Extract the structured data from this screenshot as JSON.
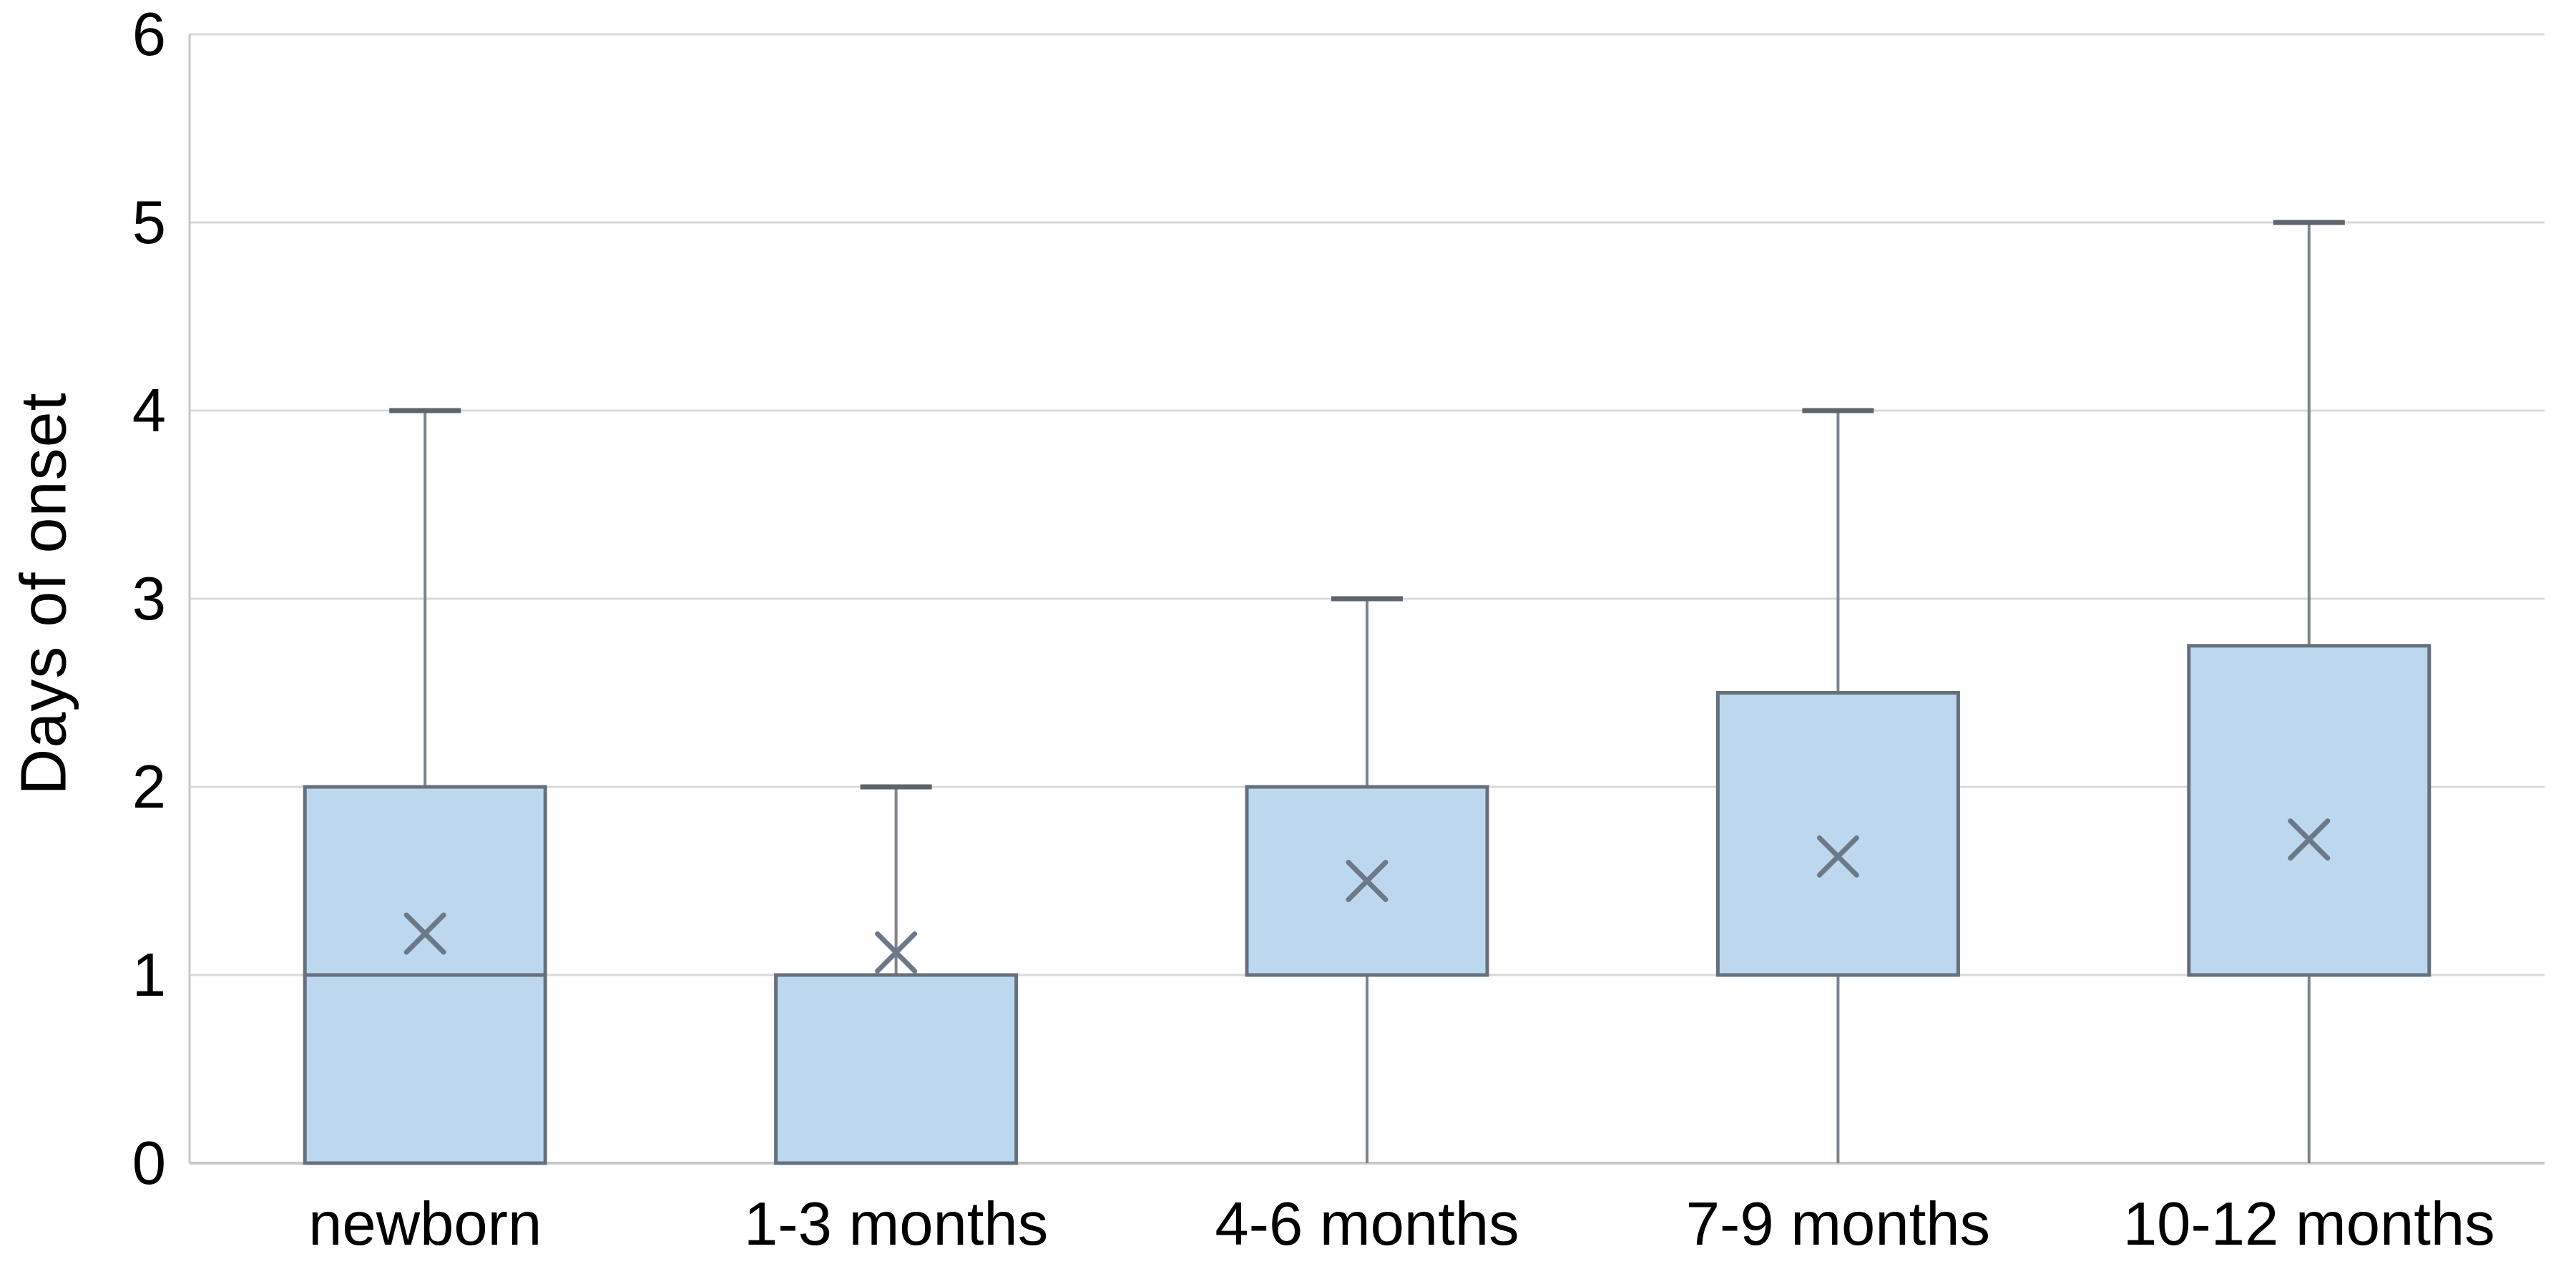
{
  "chart_data": {
    "type": "box",
    "title": "",
    "xlabel": "",
    "ylabel": "Days of onset",
    "ylim": [
      0,
      6
    ],
    "ytick_step": 1,
    "ytick_labels": [
      "0",
      "1",
      "2",
      "3",
      "4",
      "5",
      "6"
    ],
    "grid": true,
    "legend": false,
    "categories": [
      "newborn",
      "1-3 months",
      "4-6 months",
      "7-9 months",
      "10-12 months"
    ],
    "series": [
      {
        "category": "newborn",
        "whisker_low": 0,
        "q1": 0,
        "median": 1,
        "q3": 2,
        "whisker_high": 4,
        "mean": 1.22
      },
      {
        "category": "1-3 months",
        "whisker_low": 0,
        "q1": 0,
        "median": 1,
        "q3": 1,
        "whisker_high": 2,
        "mean": 1.12
      },
      {
        "category": "4-6 months",
        "whisker_low": 0,
        "q1": 1,
        "median": 1,
        "q3": 2,
        "whisker_high": 3,
        "mean": 1.5
      },
      {
        "category": "7-9 months",
        "whisker_low": 0,
        "q1": 1,
        "median": 1,
        "q3": 2.5,
        "whisker_high": 4,
        "mean": 1.63
      },
      {
        "category": "10-12 months",
        "whisker_low": 0,
        "q1": 1,
        "median": 1,
        "q3": 2.75,
        "whisker_high": 5,
        "mean": 1.72
      }
    ],
    "colors": {
      "background": "#ffffff",
      "gridline": "#d9d9d9",
      "axis_line": "#c8c8c8",
      "box_fill": "#bdd7ee",
      "box_border": "#66707d",
      "median_line": "#66707d",
      "whisker": "#7d848c",
      "whisker_cap": "#5d646c",
      "mean_marker": "#6c7988",
      "text": "#000000"
    }
  }
}
